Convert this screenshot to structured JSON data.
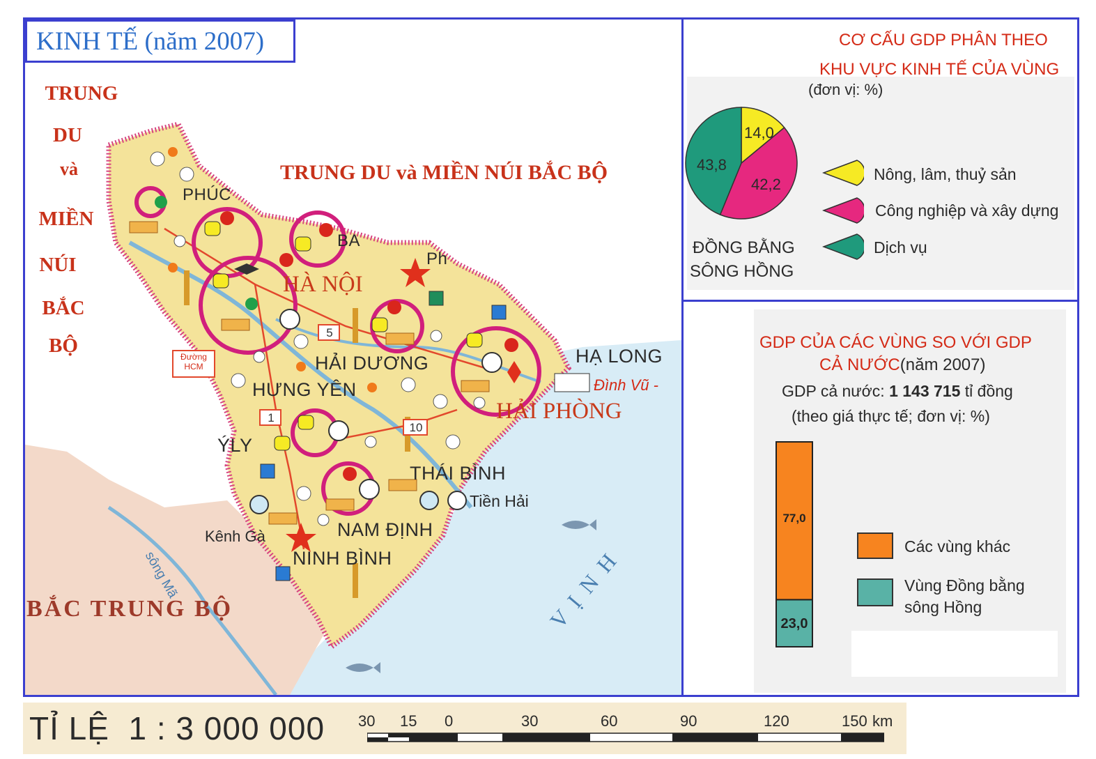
{
  "map": {
    "title": "KINH TẾ (năm 2007)",
    "region_north": "TRUNG DU và MIỀN NÚI BẮC BỘ",
    "region_north_side": [
      "TRUNG",
      "DU",
      "và",
      "MIỀN",
      "NÚI",
      "BẮC",
      "BỘ"
    ],
    "region_south": "BẮC TRUNG BỘ",
    "bay_label": "V Ị N H",
    "river_label": "sông Mã",
    "road_labels": [
      "5",
      "1",
      "10"
    ],
    "road_sign": "Đường HCM",
    "places": {
      "phuc": "PHÚC",
      "ba": "BA",
      "ph": "Ph",
      "hanoi": "HÀ NỘI",
      "haiduong": "HẢI DƯƠNG",
      "hungyen": "HƯNG YÊN",
      "haiphong": "HẢI PHÒNG",
      "halong": "HẠ LONG",
      "dinhvu": "Đình Vũ -",
      "ly": "ÝLY",
      "thaibinh": "THÁI BÌNH",
      "tienhai": "Tiền Hải",
      "kenhga": "Kênh Gà",
      "namdinh": "NAM ĐỊNH",
      "ninhbinh": "NINH BÌNH"
    },
    "colors": {
      "land_region": "#f4e39a",
      "land_other": "#f3d9c9",
      "sea": "#d8ecf6",
      "border": "#d7457f",
      "center_ring": "#d11f7c",
      "frame": "#3b3fcf"
    }
  },
  "pie_panel": {
    "title_line1": "CƠ CẤU GDP PHÂN THEO",
    "title_line2": "KHU VỰC KINH TẾ CỦA VÙNG",
    "unit": "(đơn vị: %)",
    "caption_line1": "ĐỒNG BẰNG",
    "caption_line2": "SÔNG HỒNG",
    "value_labels": [
      "14,0",
      "42,2",
      "43,8"
    ]
  },
  "bar_panel": {
    "title_line1": "GDP CỦA CÁC VÙNG SO VỚI GDP",
    "title_line2_red": "CẢ NƯỚC",
    "title_line2_dark": "(năm 2007)",
    "national_label": "GDP cả nước:",
    "national_value": "1 143 715",
    "national_unit": "tỉ đồng",
    "note": "(theo giá thực tế; đơn vị: %)",
    "value_labels": [
      "77,0",
      "23,0"
    ],
    "legend": [
      "Các vùng khác",
      "Vùng Đồng bằng sông Hồng"
    ]
  },
  "scale_bar": {
    "label": "TỈ LỆ  1 : 3 000 000",
    "ticks": [
      "30",
      "15",
      "0",
      "30",
      "60",
      "90",
      "120",
      "150"
    ],
    "unit": "km"
  },
  "chart_data": [
    {
      "type": "pie",
      "title": "CƠ CẤU GDP PHÂN THEO KHU VỰC KINH TẾ CỦA VÙNG",
      "unit": "(đơn vị: %)",
      "labels": [
        "Nông, lâm, thuỷ sản",
        "Công nghiệp và xây dựng",
        "Dịch vụ"
      ],
      "values": [
        14.0,
        42.2,
        43.8
      ],
      "colors": [
        "#f6ea24",
        "#e6287f",
        "#1f9a7c"
      ],
      "legend_position": "right"
    },
    {
      "type": "bar",
      "stacked": true,
      "title": "GDP CỦA CÁC VÙNG SO VỚI GDP CẢ NƯỚC (năm 2007)",
      "categories": [
        ""
      ],
      "series": [
        {
          "name": "Vùng Đồng bằng sông Hồng",
          "values": [
            23.0
          ],
          "color": "#59b2a6"
        },
        {
          "name": "Các vùng khác",
          "values": [
            77.0
          ],
          "color": "#f7841f"
        }
      ],
      "ylim": [
        0,
        100
      ],
      "legend_position": "right"
    }
  ]
}
